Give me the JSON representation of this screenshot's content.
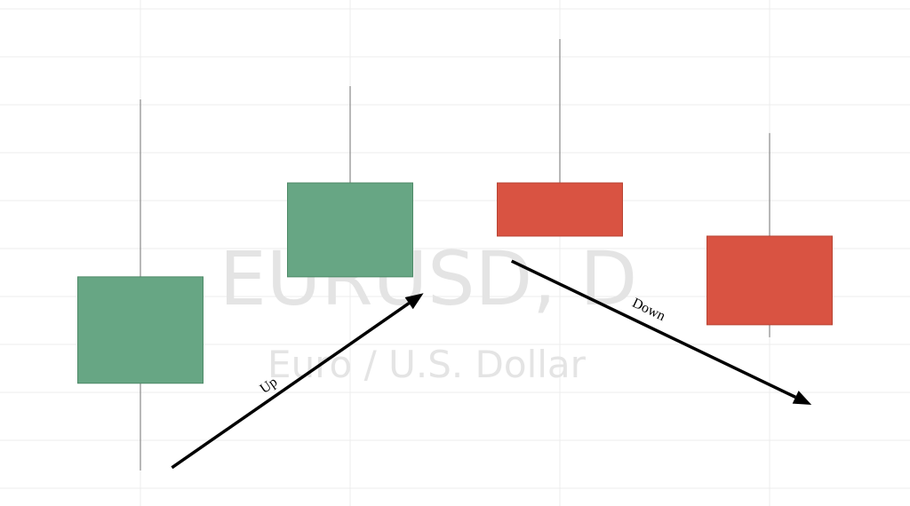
{
  "chart_data": {
    "type": "candlestick",
    "watermark": {
      "symbol": "EURUSD, D",
      "description": "Euro / U.S. Dollar"
    },
    "ylim": [
      0,
      10
    ],
    "grid": true,
    "candles": [
      {
        "open": 2.19,
        "high": 8.11,
        "low": 0.37,
        "close": 4.41,
        "direction": "up"
      },
      {
        "open": 4.41,
        "high": 8.39,
        "low": 4.41,
        "close": 6.37,
        "direction": "up"
      },
      {
        "open": 6.37,
        "high": 9.37,
        "low": 5.26,
        "close": 5.26,
        "direction": "down"
      },
      {
        "open": 5.26,
        "high": 7.41,
        "low": 3.15,
        "close": 3.41,
        "direction": "down"
      }
    ],
    "annotations": [
      {
        "label": "Up",
        "from": {
          "candle": 0.15,
          "value": 0.43
        },
        "to": {
          "candle": 1.35,
          "value": 4.07
        }
      },
      {
        "label": "Down",
        "from": {
          "candle": 1.77,
          "value": 4.74
        },
        "to": {
          "candle": 3.2,
          "value": 1.74
        }
      }
    ],
    "colors": {
      "up": "#67a684",
      "down": "#d95342",
      "wick": "#a0a0a0",
      "grid": "#ececec",
      "arrow": "#000000"
    }
  }
}
